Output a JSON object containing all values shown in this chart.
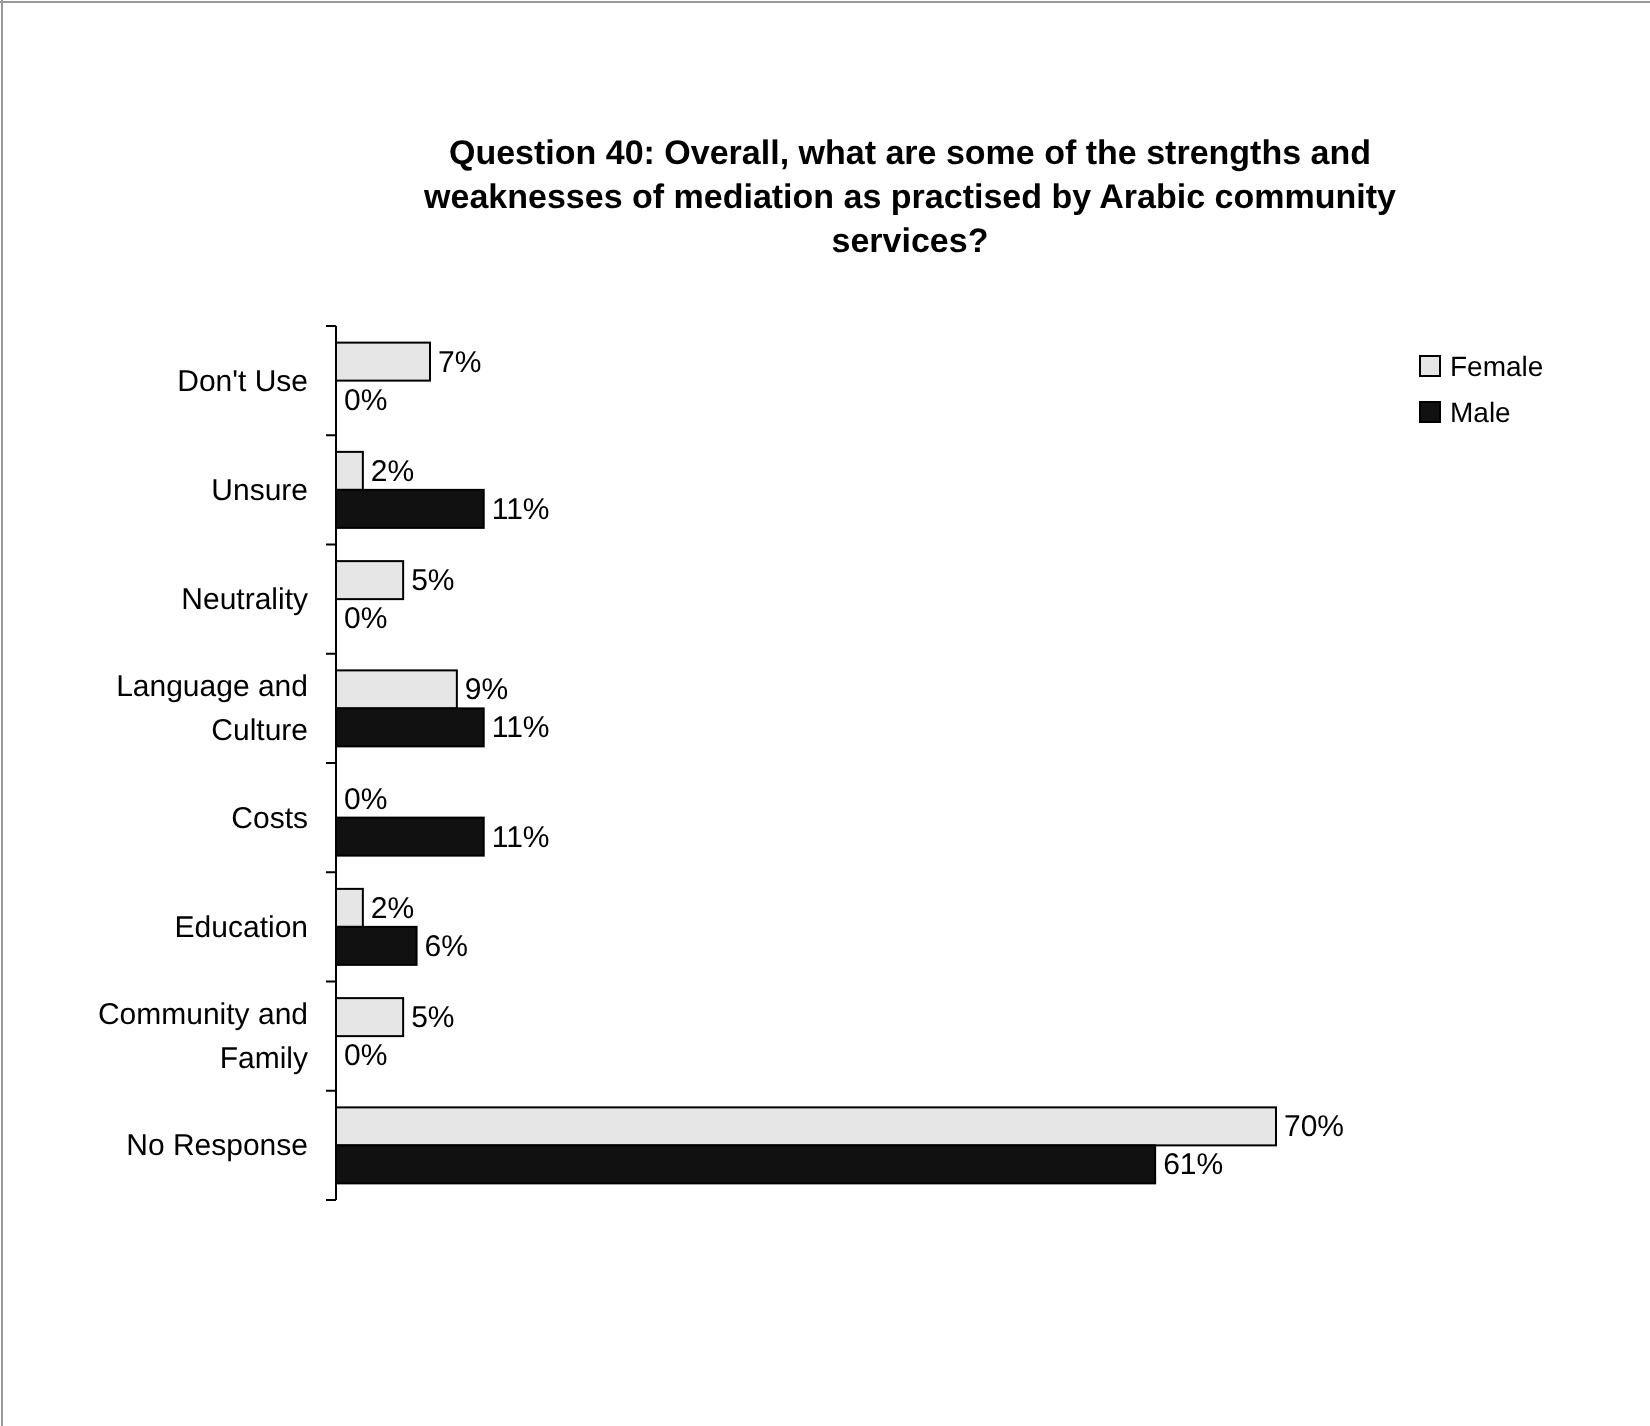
{
  "chart_data": {
    "type": "bar",
    "orientation": "horizontal",
    "title": "Question 40: Overall, what are some of the strengths and weaknesses of mediation as practised by Arabic community services?",
    "categories": [
      "Don't Use",
      "Unsure",
      "Neutrality",
      "Language and Culture",
      "Costs",
      "Education",
      "Community and Family",
      "No Response"
    ],
    "series": [
      {
        "name": "Female",
        "color": "#e6e6e6",
        "values": [
          7,
          2,
          5,
          9,
          0,
          2,
          5,
          70
        ],
        "value_labels": [
          "7%",
          "2%",
          "5%",
          "9%",
          "0%",
          "2%",
          "5%",
          "70%"
        ]
      },
      {
        "name": "Male",
        "color": "#111111",
        "values": [
          0,
          11,
          0,
          11,
          11,
          6,
          0,
          61
        ],
        "value_labels": [
          "0%",
          "11%",
          "0%",
          "11%",
          "11%",
          "6%",
          "0%",
          "61%"
        ]
      }
    ],
    "legend": "top right"
  }
}
